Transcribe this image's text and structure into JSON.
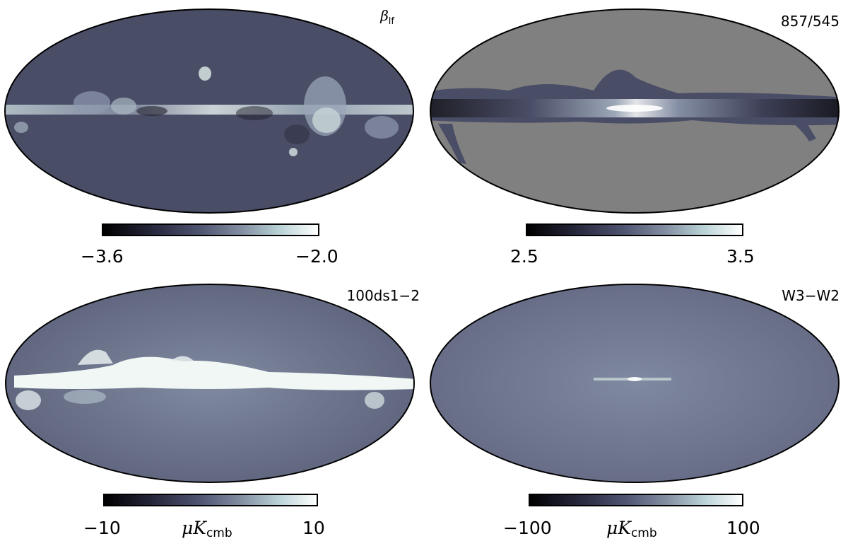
{
  "panels": [
    {
      "id": "beta-lf",
      "label_symbol": "β",
      "label_sub": "lf",
      "colorbar": {
        "min_label": "−3.6",
        "max_label": "−2.0",
        "unit": "",
        "unit_sub": ""
      }
    },
    {
      "id": "857-545",
      "label": "857/545",
      "colorbar": {
        "min_label": "2.5",
        "max_label": "3.5",
        "unit": "",
        "unit_sub": ""
      }
    },
    {
      "id": "100ds1-2",
      "label": "100ds1−2",
      "colorbar": {
        "min_label": "−10",
        "max_label": "10",
        "unit": "μK",
        "unit_sub": "cmb"
      }
    },
    {
      "id": "w3-w2",
      "label": "W3−W2",
      "colorbar": {
        "min_label": "−100",
        "max_label": "100",
        "unit": "μK",
        "unit_sub": "cmb"
      }
    }
  ],
  "colormap": [
    "#000000",
    "#25253a",
    "#4f5470",
    "#8590a4",
    "#b9d2d6",
    "#ffffff"
  ],
  "masked_color": "#808080"
}
